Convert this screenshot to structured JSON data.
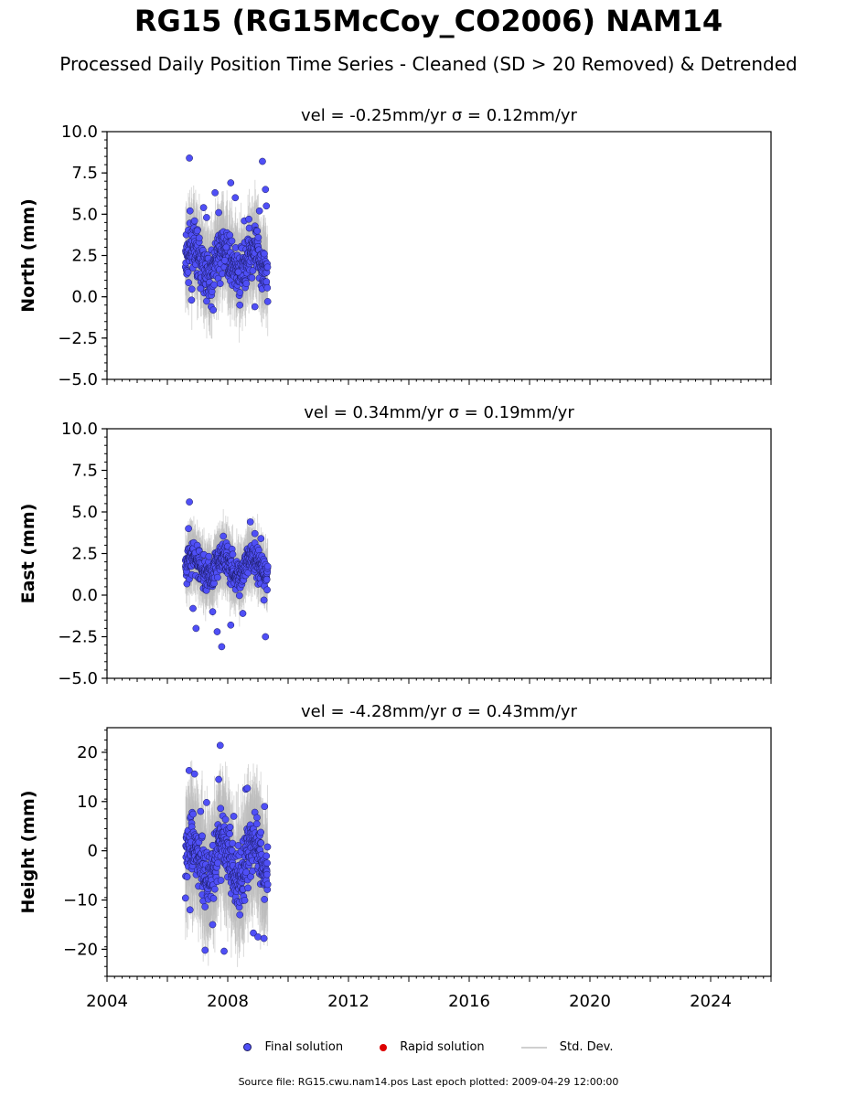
{
  "title": "RG15 (RG15McCoy_CO2006) NAM14",
  "subtitle": "Processed Daily Position Time Series - Cleaned (SD > 20 Removed) & Detrended",
  "colors": {
    "final": "#4f4ff6",
    "rapid": "#dd0000",
    "std": "#bbbbbb"
  },
  "legend": {
    "final": "Final solution",
    "rapid": "Rapid solution",
    "std": "Std. Dev."
  },
  "footer": "Source file: RG15.cwu.nam14.pos  Last epoch plotted: 2009-04-29 12:00:00",
  "chart_data": [
    {
      "type": "scatter",
      "title": "vel = -0.25mm/yr   σ = 0.12mm/yr",
      "ylabel": "North (mm)",
      "xlim": [
        2004,
        2026
      ],
      "ylim": [
        -5,
        10
      ],
      "yticks": [
        10.0,
        7.5,
        5.0,
        2.5,
        0.0,
        -2.5,
        -5.0
      ],
      "ytick_labels": [
        "10.0",
        "7.5",
        "5.0",
        "2.5",
        "0.0",
        "−2.5",
        "−5.0"
      ],
      "data_span": [
        2006.6,
        2009.33
      ],
      "series": [
        {
          "name": "Final solution",
          "x": [
            2006.73,
            2006.75,
            2006.9,
            2006.99,
            2007.2,
            2007.3,
            2007.45,
            2007.52,
            2007.58,
            2007.7,
            2007.75,
            2007.9,
            2008.1,
            2008.25,
            2008.4,
            2008.55,
            2008.7,
            2008.9,
            2009.05,
            2009.15,
            2009.25,
            2009.28,
            2006.8,
            2007.1,
            2007.95,
            2008.35
          ],
          "y": [
            8.4,
            5.2,
            4.6,
            4.0,
            5.4,
            4.8,
            -0.6,
            -0.8,
            6.3,
            5.1,
            0.8,
            2.2,
            6.9,
            6.0,
            -0.5,
            4.6,
            4.7,
            -0.6,
            5.2,
            8.2,
            6.5,
            5.5,
            -0.2,
            0.5,
            3.0,
            1.5
          ]
        }
      ],
      "envelope": {
        "mean": 2.1,
        "spread": 1.7
      }
    },
    {
      "type": "scatter",
      "title": "vel = 0.34mm/yr   σ = 0.19mm/yr",
      "ylabel": "East (mm)",
      "xlim": [
        2004,
        2026
      ],
      "ylim": [
        -5,
        10
      ],
      "yticks": [
        10.0,
        7.5,
        5.0,
        2.5,
        0.0,
        -2.5,
        -5.0
      ],
      "ytick_labels": [
        "10.0",
        "7.5",
        "5.0",
        "2.5",
        "0.0",
        "−2.5",
        "−5.0"
      ],
      "data_span": [
        2006.6,
        2009.33
      ],
      "series": [
        {
          "name": "Final solution",
          "x": [
            2006.73,
            2006.95,
            2007.65,
            2007.8,
            2008.1,
            2008.75,
            2009.25,
            2006.7,
            2007.5,
            2008.5,
            2008.9,
            2009.1,
            2006.85,
            2009.2
          ],
          "y": [
            5.6,
            -2.0,
            -2.2,
            -3.1,
            -1.8,
            4.4,
            -2.5,
            4.0,
            -1.0,
            -1.1,
            3.7,
            3.4,
            -0.8,
            -0.3
          ]
        }
      ],
      "envelope": {
        "mean": 1.7,
        "spread": 1.2
      }
    },
    {
      "type": "scatter",
      "title": "vel = -4.28mm/yr   σ = 0.43mm/yr",
      "ylabel": "Height (mm)",
      "xlim": [
        2004,
        2026
      ],
      "ylim": [
        -25.5,
        25
      ],
      "yticks": [
        20,
        10,
        0,
        -10,
        -20
      ],
      "ytick_labels": [
        "20",
        "10",
        "0",
        "−10",
        "−20"
      ],
      "data_span": [
        2006.6,
        2009.33
      ],
      "series": [
        {
          "name": "Final solution",
          "x": [
            2006.72,
            2006.9,
            2007.25,
            2007.3,
            2007.75,
            2007.7,
            2007.88,
            2008.6,
            2008.65,
            2008.85,
            2009.0,
            2009.2,
            2009.22,
            2006.75,
            2007.1,
            2007.5,
            2008.2,
            2008.4
          ],
          "y": [
            16.3,
            15.6,
            -20.2,
            9.8,
            21.4,
            14.5,
            -20.4,
            12.5,
            12.7,
            -16.7,
            -17.5,
            -17.8,
            9.0,
            -12.0,
            8.0,
            -15.0,
            7.0,
            -13.0
          ]
        }
      ],
      "envelope": {
        "mean": -2.0,
        "spread": 8.0
      }
    }
  ],
  "xticks": [
    2004,
    2008,
    2012,
    2016,
    2020,
    2024
  ],
  "xtick_labels": [
    "2004",
    "2008",
    "2012",
    "2016",
    "2020",
    "2024"
  ]
}
